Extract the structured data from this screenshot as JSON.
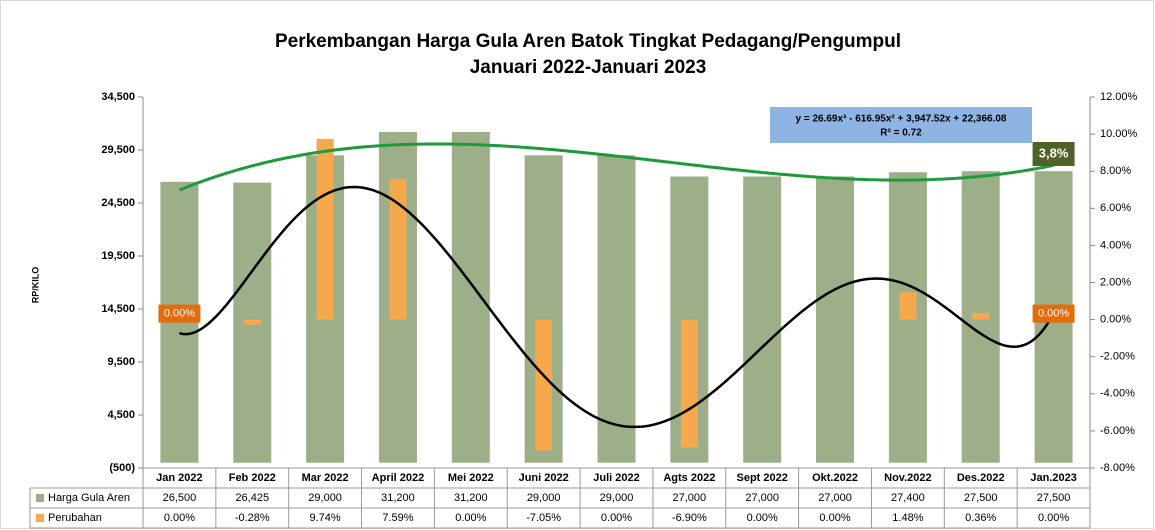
{
  "chart_data": {
    "type": "bar",
    "title": "Perkembangan Harga Gula Aren Batok Tingkat Pedagang/Pengumpul",
    "subtitle": "Januari  2022-Januari 2023",
    "y_axis_label": "RP/KILO",
    "categories": [
      "Jan 2022",
      "Feb 2022",
      "Mar 2022",
      "April 2022",
      "Mei 2022",
      "Juni 2022",
      "Juli 2022",
      "Agts 2022",
      "Sept 2022",
      "Okt.2022",
      "Nov.2022",
      "Des.2022",
      "Jan.2023"
    ],
    "series": [
      {
        "name": "Harga Gula Aren",
        "color": "#9caf88",
        "values": [
          26500,
          26425,
          29000,
          31200,
          31200,
          29000,
          29000,
          27000,
          27000,
          27000,
          27400,
          27500,
          27500
        ],
        "value_labels": [
          "26,500",
          "26,425",
          "29,000",
          "31,200",
          "31,200",
          "29,000",
          "29,000",
          "27,000",
          "27,000",
          "27,000",
          "27,400",
          "27,500",
          "27,500"
        ]
      },
      {
        "name": "Perubahan",
        "color": "#f5a84c",
        "axis": "y2",
        "values": [
          0,
          -0.28,
          9.74,
          7.59,
          0,
          -7.05,
          0,
          -6.9,
          0,
          0,
          1.48,
          0.36,
          0
        ],
        "value_labels": [
          "0.00%",
          "-0.28%",
          "9.74%",
          "7.59%",
          "0.00%",
          "-7.05%",
          "0.00%",
          "-6.90%",
          "0.00%",
          "0.00%",
          "1.48%",
          "0.36%",
          "0.00%"
        ]
      }
    ],
    "ylim": [
      -500,
      34500
    ],
    "yticks": [
      {
        "value": -500,
        "label": "(500)"
      },
      {
        "value": 4500,
        "label": "4,500"
      },
      {
        "value": 9500,
        "label": "9,500"
      },
      {
        "value": 14500,
        "label": "14,500"
      },
      {
        "value": 19500,
        "label": "19,500"
      },
      {
        "value": 24500,
        "label": "24,500"
      },
      {
        "value": 29500,
        "label": "29,500"
      },
      {
        "value": 34500,
        "label": "34,500"
      }
    ],
    "y2lim": [
      -8,
      12
    ],
    "y2ticks": [
      {
        "value": -8,
        "label": "-8.00%"
      },
      {
        "value": -6,
        "label": "-6.00%"
      },
      {
        "value": -4,
        "label": "-4.00%"
      },
      {
        "value": -2,
        "label": "-2.00%"
      },
      {
        "value": 0,
        "label": "0.00%"
      },
      {
        "value": 2,
        "label": "2.00%"
      },
      {
        "value": 4,
        "label": "4.00%"
      },
      {
        "value": 6,
        "label": "6.00%"
      },
      {
        "value": 8,
        "label": "8.00%"
      },
      {
        "value": 10,
        "label": "10.00%"
      },
      {
        "value": 12,
        "label": "12.00%"
      }
    ],
    "grid": false,
    "trendline_colors": [
      "#1e9a3c",
      "#000000"
    ],
    "equation": "y = 26.69x³ - 616.95x² + 3,947.52x + 22,366.08",
    "r_squared": "R² = 0.72",
    "annotation": "3,8%"
  }
}
